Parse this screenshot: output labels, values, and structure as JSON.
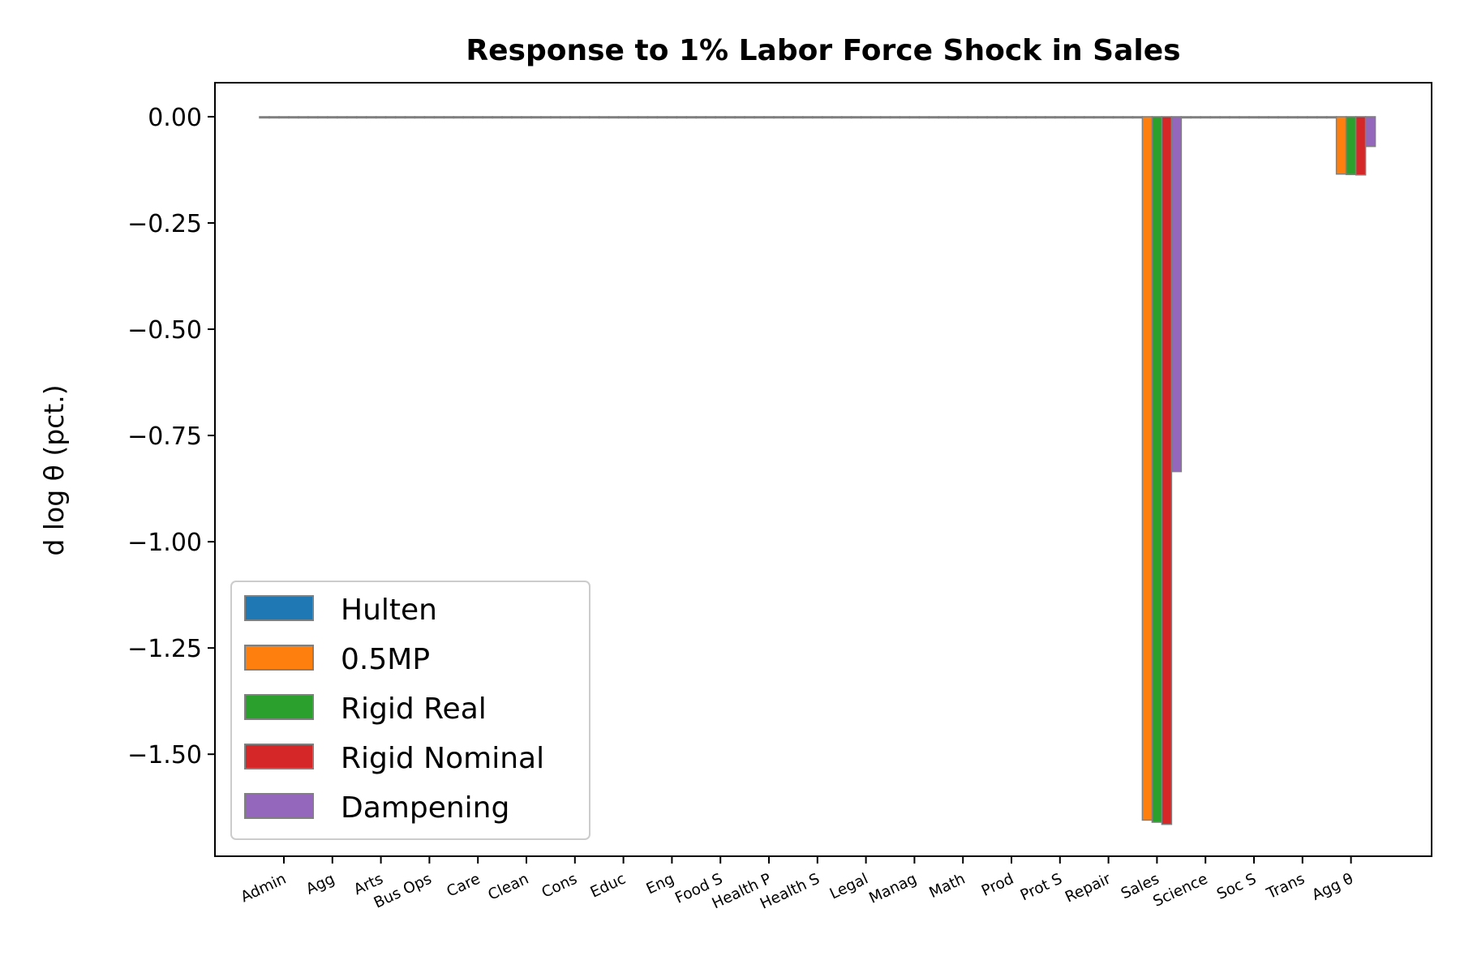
{
  "chart_data": {
    "type": "bar",
    "title": "Response to 1% Labor Force Shock in Sales",
    "ylabel": "d log θ  (pct.)",
    "xlabel": "",
    "ylim": [
      -1.74,
      0.08
    ],
    "yticks": [
      0.0,
      -0.25,
      -0.5,
      -0.75,
      -1.0,
      -1.25,
      -1.5
    ],
    "ytick_labels": [
      "0.00",
      "−0.25",
      "−0.50",
      "−0.75",
      "−1.00",
      "−1.25",
      "−1.50"
    ],
    "grid": false,
    "legend_position": "lower-left",
    "bar_edge_color": "#808080",
    "categories": [
      "Admin",
      "Agg",
      "Arts",
      "Bus Ops",
      "Care",
      "Clean",
      "Cons",
      "Educ",
      "Eng",
      "Food S",
      "Health P",
      "Health S",
      "Legal",
      "Manag",
      "Math",
      "Prod",
      "Prot S",
      "Repair",
      "Sales",
      "Science",
      "Soc S",
      "Trans",
      "Agg θ"
    ],
    "series": [
      {
        "name": "Hulten",
        "color": "#1f77b4",
        "values": [
          0,
          0,
          0,
          0,
          0,
          0,
          0,
          0,
          0,
          0,
          0,
          0,
          0,
          0,
          0,
          0,
          0,
          0,
          0,
          0,
          0,
          0,
          0
        ]
      },
      {
        "name": "0.5MP",
        "color": "#ff7f0e",
        "values": [
          0,
          0,
          0,
          0,
          0,
          0,
          0,
          0,
          0,
          0,
          0,
          0,
          0,
          0,
          0,
          0,
          0,
          0,
          -1.655,
          0,
          0,
          0,
          -0.135
        ]
      },
      {
        "name": "Rigid Real",
        "color": "#2ca02c",
        "values": [
          0,
          0,
          0,
          0,
          0,
          0,
          0,
          0,
          0,
          0,
          0,
          0,
          0,
          0,
          0,
          0,
          0,
          0,
          -1.66,
          0,
          0,
          0,
          -0.136
        ]
      },
      {
        "name": "Rigid Nominal",
        "color": "#d62728",
        "values": [
          0,
          0,
          0,
          0,
          0,
          0,
          0,
          0,
          0,
          0,
          0,
          0,
          0,
          0,
          0,
          0,
          0,
          0,
          -1.665,
          0,
          0,
          0,
          -0.137
        ]
      },
      {
        "name": "Dampening",
        "color": "#9467bd",
        "values": [
          0,
          0,
          0,
          0,
          0,
          0,
          0,
          0,
          0,
          0,
          0,
          0,
          0,
          0,
          0,
          0,
          0,
          0,
          -0.835,
          0,
          0,
          0,
          -0.07
        ]
      }
    ]
  }
}
